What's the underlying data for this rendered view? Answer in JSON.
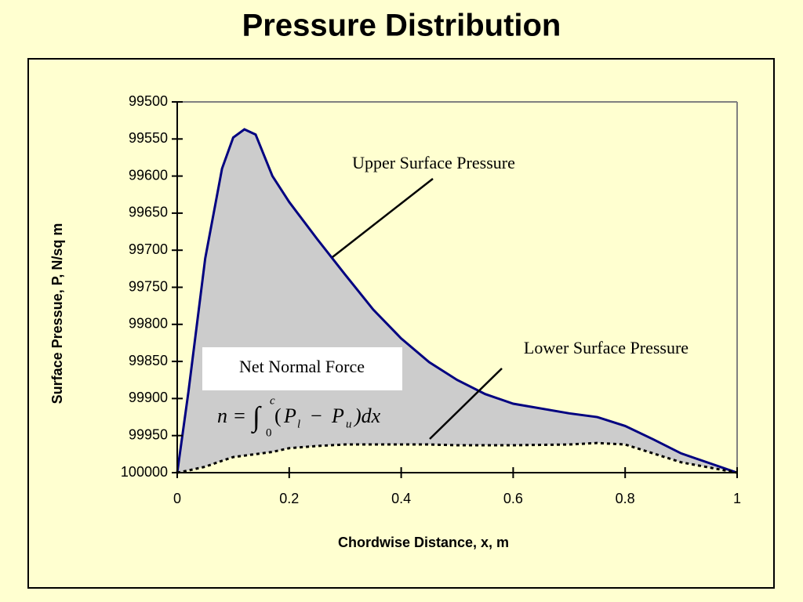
{
  "chart_data": {
    "type": "line",
    "title": "Pressure Distribution",
    "x_label": "Chordwise Distance, x, m",
    "y_label": "Surface Pressue, P, N/sq m",
    "x": [
      0,
      0.02,
      0.05,
      0.08,
      0.1,
      0.12,
      0.14,
      0.17,
      0.2,
      0.25,
      0.3,
      0.35,
      0.4,
      0.45,
      0.5,
      0.55,
      0.6,
      0.7,
      0.75,
      0.8,
      0.85,
      0.9,
      1
    ],
    "series": [
      {
        "name": "Upper Surface Pressure",
        "color": "#000080",
        "dash": "solid",
        "values": [
          100000,
          99891,
          99711,
          99590,
          99548,
          99537,
          99544,
          99600,
          99635,
          99685,
          99733,
          99780,
          99819,
          99851,
          99875,
          99894,
          99907,
          99920,
          99925,
          99937,
          99955,
          99974,
          100000
        ]
      },
      {
        "name": "Lower Surface Pressure",
        "color": "#000000",
        "dash": "dotted",
        "values": [
          100000,
          99997,
          99992,
          99984,
          99979,
          99977,
          99975,
          99972,
          99967,
          99964,
          99962,
          99962,
          99962,
          99962,
          99963,
          99963,
          99963,
          99962,
          99960,
          99962,
          99974,
          99986,
          100000
        ]
      }
    ],
    "fill_between_color": "#cccccc",
    "xlim": [
      0,
      1
    ],
    "xticks": [
      0,
      0.2,
      0.4,
      0.6,
      0.8,
      1
    ],
    "ylim": [
      99500,
      100000
    ],
    "y_inverted": true,
    "yticks": [
      99500,
      99550,
      99600,
      99650,
      99700,
      99750,
      99800,
      99850,
      99900,
      99950,
      100000
    ],
    "annotation_box": "Net Normal Force",
    "formula": {
      "lhs": "n =",
      "integral": "∫",
      "upper_limit": "c",
      "lower_limit": "0",
      "open": "(",
      "p1": "P",
      "sub1": "l",
      "minus": "−",
      "p2": "P",
      "sub2": "u",
      "close": ")dx"
    }
  }
}
